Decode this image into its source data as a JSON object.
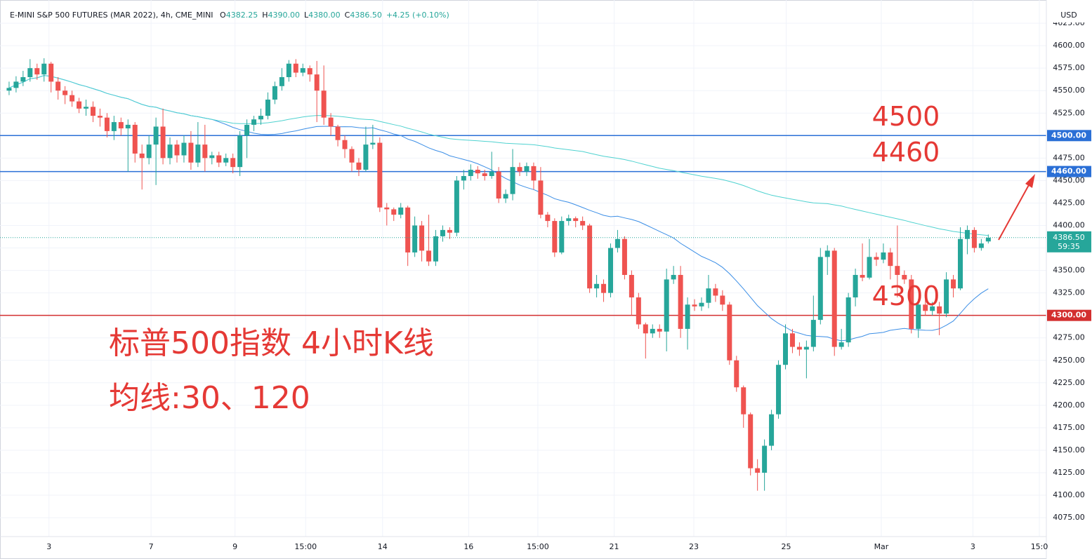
{
  "header": {
    "symbol": "E-MINI S&P 500 FUTURES (MAR 2022), 4h, CME_MINI",
    "ohlc": [
      {
        "key": "O",
        "value": "4382.25"
      },
      {
        "key": "H",
        "value": "4390.00"
      },
      {
        "key": "L",
        "value": "4380.00"
      },
      {
        "key": "C",
        "value": "4386.50"
      }
    ],
    "change": "+4.25 (+0.10%)"
  },
  "chart_data": {
    "type": "candlestick",
    "currency": "USD",
    "title": "标普500指数 4小时K线",
    "subtitle": "均线:30、120",
    "up_color": "#26a69a",
    "down_color": "#ef5350",
    "moving_averages": [
      {
        "period": 30,
        "color": "#3b8ee6"
      },
      {
        "period": 120,
        "color": "#4fd2d0"
      }
    ],
    "ylim": [
      4054,
      4643
    ],
    "xlim": [
      -1.3,
      148.3
    ],
    "grid": true,
    "yticks": [
      {
        "value": 4075,
        "label": "4075.00"
      },
      {
        "value": 4100,
        "label": "4100.00"
      },
      {
        "value": 4125,
        "label": "4125.00"
      },
      {
        "value": 4150,
        "label": "4150.00"
      },
      {
        "value": 4175,
        "label": "4175.00"
      },
      {
        "value": 4200,
        "label": "4200.00"
      },
      {
        "value": 4225,
        "label": "4225.00"
      },
      {
        "value": 4250,
        "label": "4250.00"
      },
      {
        "value": 4275,
        "label": "4275.00"
      },
      {
        "value": 4300,
        "label": "4300.00"
      },
      {
        "value": 4325,
        "label": "4325.00"
      },
      {
        "value": 4350,
        "label": "4350.00"
      },
      {
        "value": 4375,
        "label": "4375.00"
      },
      {
        "value": 4400,
        "label": "4400.00"
      },
      {
        "value": 4425,
        "label": "4425.00"
      },
      {
        "value": 4450,
        "label": "4450.00"
      },
      {
        "value": 4475,
        "label": "4475.00"
      },
      {
        "value": 4500,
        "label": "4500.00"
      },
      {
        "value": 4525,
        "label": "4525.00"
      },
      {
        "value": 4550,
        "label": "4550.00"
      },
      {
        "value": 4575,
        "label": "4575.00"
      },
      {
        "value": 4600,
        "label": "4600.00"
      },
      {
        "value": 4625,
        "label": "4625.00"
      }
    ],
    "xticks": [
      {
        "value": 5.7,
        "label": "3"
      },
      {
        "value": 20.3,
        "label": "7"
      },
      {
        "value": 32.3,
        "label": "9"
      },
      {
        "value": 42.4,
        "label": "15:00"
      },
      {
        "value": 53.4,
        "label": "14"
      },
      {
        "value": 65.7,
        "label": "16"
      },
      {
        "value": 75.6,
        "label": "15:00"
      },
      {
        "value": 86.5,
        "label": "21"
      },
      {
        "value": 97.9,
        "label": "23"
      },
      {
        "value": 111.1,
        "label": "25"
      },
      {
        "value": 124.7,
        "label": "Mar"
      },
      {
        "value": 137.8,
        "label": "3"
      },
      {
        "value": 147.3,
        "label": "15:0"
      }
    ],
    "hlines": [
      {
        "value": 4500,
        "label": "4500.00",
        "note": "4500",
        "color": "#2a6fd6"
      },
      {
        "value": 4460,
        "label": "4460.00",
        "note": "4460",
        "color": "#2a6fd6"
      },
      {
        "value": 4300,
        "label": "4300.00",
        "note": "4300",
        "color": "#d32f2f"
      }
    ],
    "last_price": {
      "value": 4386.5,
      "label": "4386.50",
      "countdown": "59:35"
    },
    "candles": [
      [
        4550,
        4560,
        4545,
        4553
      ],
      [
        4553,
        4566,
        4548,
        4560
      ],
      [
        4560,
        4572,
        4555,
        4565
      ],
      [
        4565,
        4585,
        4560,
        4575
      ],
      [
        4575,
        4580,
        4562,
        4568
      ],
      [
        4568,
        4586,
        4560,
        4580
      ],
      [
        4580,
        4582,
        4548,
        4560
      ],
      [
        4560,
        4565,
        4540,
        4550
      ],
      [
        4550,
        4555,
        4535,
        4545
      ],
      [
        4545,
        4550,
        4532,
        4538
      ],
      [
        4538,
        4542,
        4525,
        4530
      ],
      [
        4530,
        4540,
        4522,
        4532
      ],
      [
        4532,
        4538,
        4515,
        4522
      ],
      [
        4522,
        4530,
        4510,
        4520
      ],
      [
        4520,
        4525,
        4498,
        4505
      ],
      [
        4505,
        4522,
        4495,
        4515
      ],
      [
        4515,
        4520,
        4500,
        4508
      ],
      [
        4508,
        4518,
        4460,
        4512
      ],
      [
        4512,
        4515,
        4470,
        4480
      ],
      [
        4480,
        4490,
        4440,
        4475
      ],
      [
        4475,
        4500,
        4468,
        4490
      ],
      [
        4490,
        4520,
        4445,
        4510
      ],
      [
        4510,
        4530,
        4468,
        4475
      ],
      [
        4475,
        4498,
        4468,
        4490
      ],
      [
        4490,
        4495,
        4470,
        4478
      ],
      [
        4478,
        4500,
        4470,
        4492
      ],
      [
        4492,
        4505,
        4462,
        4470
      ],
      [
        4470,
        4515,
        4465,
        4490
      ],
      [
        4490,
        4512,
        4460,
        4475
      ],
      [
        4475,
        4482,
        4468,
        4478
      ],
      [
        4478,
        4482,
        4465,
        4470
      ],
      [
        4470,
        4480,
        4466,
        4475
      ],
      [
        4475,
        4480,
        4458,
        4465
      ],
      [
        4465,
        4505,
        4455,
        4500
      ],
      [
        4500,
        4518,
        4475,
        4512
      ],
      [
        4512,
        4522,
        4505,
        4518
      ],
      [
        4518,
        4530,
        4512,
        4522
      ],
      [
        4522,
        4548,
        4518,
        4540
      ],
      [
        4540,
        4560,
        4535,
        4555
      ],
      [
        4555,
        4575,
        4550,
        4565
      ],
      [
        4565,
        4584,
        4560,
        4580
      ],
      [
        4580,
        4585,
        4565,
        4570
      ],
      [
        4570,
        4580,
        4566,
        4575
      ],
      [
        4575,
        4578,
        4560,
        4568
      ],
      [
        4568,
        4583,
        4515,
        4550
      ],
      [
        4550,
        4578,
        4512,
        4520
      ],
      [
        4520,
        4525,
        4500,
        4510
      ],
      [
        4510,
        4512,
        4488,
        4495
      ],
      [
        4495,
        4500,
        4475,
        4485
      ],
      [
        4485,
        4488,
        4460,
        4470
      ],
      [
        4470,
        4475,
        4455,
        4462
      ],
      [
        4462,
        4510,
        4460,
        4490
      ],
      [
        4490,
        4512,
        4485,
        4492
      ],
      [
        4492,
        4498,
        4415,
        4420
      ],
      [
        4420,
        4425,
        4400,
        4418
      ],
      [
        4418,
        4420,
        4405,
        4412
      ],
      [
        4412,
        4425,
        4408,
        4420
      ],
      [
        4420,
        4422,
        4355,
        4370
      ],
      [
        4370,
        4410,
        4365,
        4400
      ],
      [
        4400,
        4405,
        4360,
        4372
      ],
      [
        4372,
        4412,
        4355,
        4360
      ],
      [
        4360,
        4395,
        4355,
        4388
      ],
      [
        4388,
        4400,
        4382,
        4395
      ],
      [
        4395,
        4398,
        4385,
        4392
      ],
      [
        4392,
        4455,
        4388,
        4450
      ],
      [
        4450,
        4462,
        4440,
        4455
      ],
      [
        4455,
        4468,
        4450,
        4462
      ],
      [
        4462,
        4466,
        4452,
        4458
      ],
      [
        4458,
        4462,
        4450,
        4455
      ],
      [
        4455,
        4482,
        4452,
        4460
      ],
      [
        4460,
        4465,
        4425,
        4430
      ],
      [
        4430,
        4440,
        4425,
        4435
      ],
      [
        4435,
        4485,
        4428,
        4465
      ],
      [
        4465,
        4470,
        4455,
        4460
      ],
      [
        4460,
        4470,
        4455,
        4466
      ],
      [
        4466,
        4470,
        4440,
        4450
      ],
      [
        4450,
        4465,
        4408,
        4412
      ],
      [
        4412,
        4415,
        4398,
        4405
      ],
      [
        4405,
        4408,
        4365,
        4370
      ],
      [
        4370,
        4410,
        4368,
        4405
      ],
      [
        4405,
        4412,
        4400,
        4408
      ],
      [
        4408,
        4410,
        4398,
        4405
      ],
      [
        4405,
        4410,
        4395,
        4400
      ],
      [
        4400,
        4402,
        4325,
        4330
      ],
      [
        4330,
        4345,
        4320,
        4335
      ],
      [
        4335,
        4340,
        4315,
        4325
      ],
      [
        4325,
        4380,
        4320,
        4375
      ],
      [
        4375,
        4395,
        4370,
        4385
      ],
      [
        4385,
        4388,
        4340,
        4345
      ],
      [
        4345,
        4350,
        4300,
        4320
      ],
      [
        4320,
        4325,
        4285,
        4290
      ],
      [
        4290,
        4292,
        4252,
        4280
      ],
      [
        4280,
        4290,
        4275,
        4285
      ],
      [
        4285,
        4290,
        4275,
        4282
      ],
      [
        4282,
        4352,
        4260,
        4340
      ],
      [
        4340,
        4355,
        4335,
        4345
      ],
      [
        4345,
        4355,
        4275,
        4285
      ],
      [
        4285,
        4320,
        4262,
        4312
      ],
      [
        4312,
        4318,
        4305,
        4310
      ],
      [
        4310,
        4320,
        4305,
        4314
      ],
      [
        4314,
        4345,
        4308,
        4330
      ],
      [
        4330,
        4335,
        4315,
        4322
      ],
      [
        4322,
        4328,
        4305,
        4312
      ],
      [
        4312,
        4315,
        4245,
        4250
      ],
      [
        4250,
        4255,
        4215,
        4220
      ],
      [
        4220,
        4222,
        4175,
        4190
      ],
      [
        4190,
        4192,
        4122,
        4130
      ],
      [
        4130,
        4140,
        4105,
        4125
      ],
      [
        4125,
        4162,
        4105,
        4155
      ],
      [
        4155,
        4195,
        4150,
        4190
      ],
      [
        4190,
        4250,
        4185,
        4245
      ],
      [
        4245,
        4290,
        4240,
        4280
      ],
      [
        4280,
        4285,
        4258,
        4265
      ],
      [
        4265,
        4270,
        4255,
        4262
      ],
      [
        4262,
        4272,
        4230,
        4265
      ],
      [
        4265,
        4322,
        4260,
        4295
      ],
      [
        4295,
        4375,
        4290,
        4365
      ],
      [
        4365,
        4378,
        4345,
        4372
      ],
      [
        4372,
        4375,
        4255,
        4265
      ],
      [
        4265,
        4285,
        4262,
        4270
      ],
      [
        4270,
        4325,
        4265,
        4320
      ],
      [
        4320,
        4352,
        4310,
        4345
      ],
      [
        4345,
        4380,
        4338,
        4342
      ],
      [
        4342,
        4385,
        4340,
        4365
      ],
      [
        4365,
        4370,
        4355,
        4362
      ],
      [
        4362,
        4380,
        4358,
        4370
      ],
      [
        4370,
        4375,
        4340,
        4355
      ],
      [
        4355,
        4400,
        4320,
        4345
      ],
      [
        4345,
        4350,
        4335,
        4340
      ],
      [
        4340,
        4345,
        4280,
        4285
      ],
      [
        4285,
        4318,
        4275,
        4312
      ],
      [
        4312,
        4318,
        4300,
        4305
      ],
      [
        4305,
        4315,
        4300,
        4310
      ],
      [
        4310,
        4315,
        4278,
        4302
      ],
      [
        4302,
        4348,
        4298,
        4340
      ],
      [
        4340,
        4345,
        4320,
        4330
      ],
      [
        4330,
        4398,
        4328,
        4385
      ],
      [
        4385,
        4400,
        4368,
        4395
      ],
      [
        4395,
        4398,
        4370,
        4375
      ],
      [
        4375,
        4385,
        4372,
        4380
      ],
      [
        4382.25,
        4390,
        4380,
        4386.5
      ]
    ]
  }
}
